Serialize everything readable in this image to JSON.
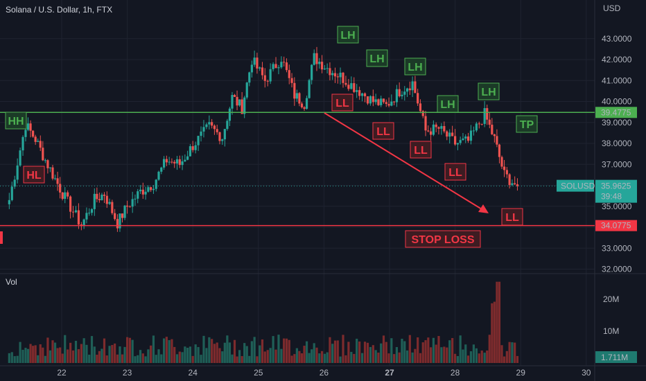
{
  "chart_title": "Solana / U.S. Dollar, 1h, FTX",
  "volume_label": "Vol",
  "currency_label": "USD",
  "colors": {
    "background": "#131722",
    "up": "#26a69a",
    "down": "#ef5350",
    "green_line": "#4caf50",
    "red_line": "#f23645",
    "axis_text": "#b2b5be"
  },
  "chart_data": {
    "type": "candlestick",
    "x_ticks": [
      "22",
      "23",
      "24",
      "25",
      "26",
      "27",
      "28",
      "29",
      "30"
    ],
    "y_ticks": [
      "32.0000",
      "33.0000",
      "34.0000",
      "35.0000",
      "36.0000",
      "37.0000",
      "38.0000",
      "39.0000",
      "40.0000",
      "41.0000",
      "42.0000",
      "43.0000"
    ],
    "volume_ticks": [
      "20M",
      "10M"
    ],
    "ylim": [
      32,
      44.5
    ],
    "close_series": [
      {
        "x": 21.2,
        "y": 35.3
      },
      {
        "x": 21.45,
        "y": 38.9
      },
      {
        "x": 21.6,
        "y": 38.2
      },
      {
        "x": 21.75,
        "y": 37.2
      },
      {
        "x": 21.9,
        "y": 36.3
      },
      {
        "x": 22.05,
        "y": 35.4
      },
      {
        "x": 22.3,
        "y": 34.1
      },
      {
        "x": 22.5,
        "y": 35.3
      },
      {
        "x": 22.65,
        "y": 35.6
      },
      {
        "x": 22.85,
        "y": 34.2
      },
      {
        "x": 23.0,
        "y": 35.0
      },
      {
        "x": 23.2,
        "y": 35.7
      },
      {
        "x": 23.4,
        "y": 36.1
      },
      {
        "x": 23.6,
        "y": 37.2
      },
      {
        "x": 23.8,
        "y": 37.0
      },
      {
        "x": 24.0,
        "y": 37.9
      },
      {
        "x": 24.25,
        "y": 38.8
      },
      {
        "x": 24.45,
        "y": 38.3
      },
      {
        "x": 24.6,
        "y": 40.2
      },
      {
        "x": 24.75,
        "y": 39.7
      },
      {
        "x": 24.9,
        "y": 42.0
      },
      {
        "x": 25.1,
        "y": 41.0
      },
      {
        "x": 25.35,
        "y": 42.1
      },
      {
        "x": 25.55,
        "y": 40.3
      },
      {
        "x": 25.7,
        "y": 39.9
      },
      {
        "x": 25.85,
        "y": 42.1
      },
      {
        "x": 26.05,
        "y": 41.6
      },
      {
        "x": 26.25,
        "y": 41.2
      },
      {
        "x": 26.5,
        "y": 40.6
      },
      {
        "x": 26.75,
        "y": 40.0
      },
      {
        "x": 26.95,
        "y": 39.8
      },
      {
        "x": 27.15,
        "y": 40.5
      },
      {
        "x": 27.35,
        "y": 40.9
      },
      {
        "x": 27.55,
        "y": 38.6
      },
      {
        "x": 27.75,
        "y": 38.7
      },
      {
        "x": 28.0,
        "y": 38.0
      },
      {
        "x": 28.2,
        "y": 38.1
      },
      {
        "x": 28.45,
        "y": 39.4
      },
      {
        "x": 28.6,
        "y": 38.2
      },
      {
        "x": 28.75,
        "y": 36.5
      },
      {
        "x": 28.95,
        "y": 35.96
      }
    ],
    "levels": [
      {
        "label": "39.4775",
        "y": 39.4775,
        "color": "#4caf50"
      },
      {
        "label": "34.0775",
        "y": 34.0775,
        "color": "#f23645"
      }
    ],
    "last_price": {
      "symbol": "SOLUSD",
      "price": "35.9625",
      "countdown": "39:48",
      "y": 35.9625
    },
    "last_volume": "1.711M",
    "annotations": [
      {
        "text": "HH",
        "color": "green"
      },
      {
        "text": "HL",
        "color": "red"
      },
      {
        "text": "LH",
        "color": "green"
      },
      {
        "text": "LH",
        "color": "green"
      },
      {
        "text": "LH",
        "color": "green"
      },
      {
        "text": "LH",
        "color": "green"
      },
      {
        "text": "LH",
        "color": "green"
      },
      {
        "text": "LL",
        "color": "red"
      },
      {
        "text": "LL",
        "color": "red"
      },
      {
        "text": "LL",
        "color": "red"
      },
      {
        "text": "LL",
        "color": "red"
      },
      {
        "text": "LL",
        "color": "red"
      },
      {
        "text": "TP",
        "color": "green"
      },
      {
        "text": "STOP LOSS",
        "color": "red"
      }
    ]
  }
}
